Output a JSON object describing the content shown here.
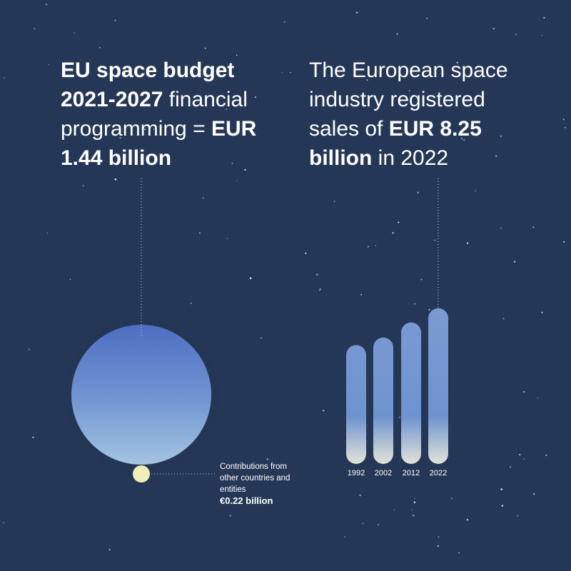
{
  "left_heading": {
    "segments": [
      {
        "text": "EU space budget 2021-2027",
        "bold": true
      },
      {
        "text": " financial programming = ",
        "bold": false
      },
      {
        "text": "EUR 1.44 billion",
        "bold": true
      }
    ]
  },
  "right_heading": {
    "segments": [
      {
        "text": "The European space industry registered sales of ",
        "bold": false
      },
      {
        "text": "EUR 8.25 billion",
        "bold": true
      },
      {
        "text": " in 2022",
        "bold": false
      }
    ]
  },
  "contribution_note": {
    "text": "Contributions from other countries and entities",
    "amount": "€0.22 billion"
  },
  "sales_bars": {
    "years": [
      "1992",
      "2002",
      "2012",
      "2022"
    ],
    "values": [
      6.3,
      6.7,
      7.5,
      8.25
    ]
  }
}
